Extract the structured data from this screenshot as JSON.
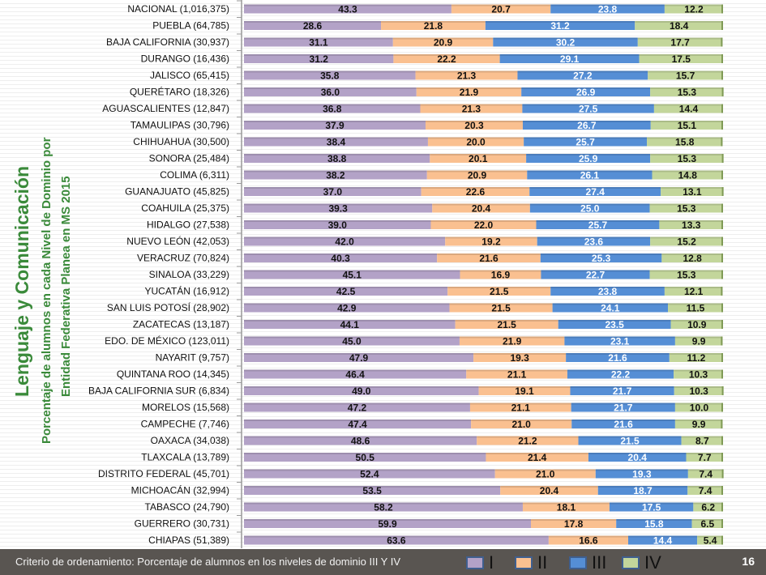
{
  "slide": {
    "main_title": "Lenguaje y Comunicación",
    "subtitle_line1": "Porcentaje de alumnos en cada Nivel de Dominio por",
    "subtitle_line2": "Entidad Federativa Planea en MS 2015",
    "footer_text": "Criterio de ordenamiento:  Porcentaje de alumnos en  los niveles  de dominio III Y IV",
    "page_number": "16"
  },
  "colors": {
    "I": "#b3a2c7",
    "II": "#fac090",
    "III": "#558ed5",
    "IV": "#c3d69b"
  },
  "chart_data": {
    "type": "bar",
    "orientation": "horizontal",
    "stacked": true,
    "title": "Porcentaje de alumnos en cada Nivel de Dominio por Entidad Federativa Planea en MS 2015",
    "xlabel": "",
    "ylabel": "",
    "xlim": [
      0,
      100
    ],
    "grid": false,
    "legend_position": "bottom",
    "legend": [
      "I",
      "II",
      "III",
      "IV"
    ],
    "categories": [
      "NACIONAL (1,016,375)",
      "PUEBLA (64,785)",
      "BAJA CALIFORNIA (30,937)",
      "DURANGO (16,436)",
      "JALISCO (65,415)",
      "QUERÉTARO (18,326)",
      "AGUASCALIENTES (12,847)",
      "TAMAULIPAS (30,796)",
      "CHIHUAHUA (30,500)",
      "SONORA (25,484)",
      "COLIMA (6,311)",
      "GUANAJUATO (45,825)",
      "COAHUILA (25,375)",
      "HIDALGO (27,538)",
      "NUEVO LEÓN (42,053)",
      "VERACRUZ (70,824)",
      "SINALOA (33,229)",
      "YUCATÁN (16,912)",
      "SAN LUIS POTOSÍ (28,902)",
      "ZACATECAS (13,187)",
      "EDO. DE MÉXICO (123,011)",
      "NAYARIT (9,757)",
      "QUINTANA ROO (14,345)",
      "BAJA CALIFORNIA SUR (6,834)",
      "MORELOS (15,568)",
      "CAMPECHE (7,746)",
      "OAXACA (34,038)",
      "TLAXCALA (13,789)",
      "DISTRITO FEDERAL (45,701)",
      "MICHOACÁN (32,994)",
      "TABASCO (24,790)",
      "GUERRERO (30,731)",
      "CHIAPAS (51,389)"
    ],
    "series": [
      {
        "name": "I",
        "values": [
          43.3,
          28.6,
          31.1,
          31.2,
          35.8,
          36.0,
          36.8,
          37.9,
          38.4,
          38.8,
          38.2,
          37.0,
          39.3,
          39.0,
          42.0,
          40.3,
          45.1,
          42.5,
          42.9,
          44.1,
          45.0,
          47.9,
          46.4,
          49.0,
          47.2,
          47.4,
          48.6,
          50.5,
          52.4,
          53.5,
          58.2,
          59.9,
          63.6
        ]
      },
      {
        "name": "II",
        "values": [
          20.7,
          21.8,
          20.9,
          22.2,
          21.3,
          21.9,
          21.3,
          20.3,
          20.0,
          20.1,
          20.9,
          22.6,
          20.4,
          22.0,
          19.2,
          21.6,
          16.9,
          21.5,
          21.5,
          21.5,
          21.9,
          19.3,
          21.1,
          19.1,
          21.1,
          21.0,
          21.2,
          21.4,
          21.0,
          20.4,
          18.1,
          17.8,
          16.6
        ]
      },
      {
        "name": "III",
        "values": [
          23.8,
          31.2,
          30.2,
          29.1,
          27.2,
          26.9,
          27.5,
          26.7,
          25.7,
          25.9,
          26.1,
          27.4,
          25.0,
          25.7,
          23.6,
          25.3,
          22.7,
          23.8,
          24.1,
          23.5,
          23.1,
          21.6,
          22.2,
          21.7,
          21.7,
          21.6,
          21.5,
          20.4,
          19.3,
          18.7,
          17.5,
          15.8,
          14.4
        ]
      },
      {
        "name": "IV",
        "values": [
          12.2,
          18.4,
          17.7,
          17.5,
          15.7,
          15.3,
          14.4,
          15.1,
          15.8,
          15.3,
          14.8,
          13.1,
          15.3,
          13.3,
          15.2,
          12.8,
          15.3,
          12.1,
          11.5,
          10.9,
          9.9,
          11.2,
          10.3,
          10.3,
          10.0,
          9.9,
          8.7,
          7.7,
          7.4,
          7.4,
          6.2,
          6.5,
          5.4
        ]
      }
    ]
  }
}
